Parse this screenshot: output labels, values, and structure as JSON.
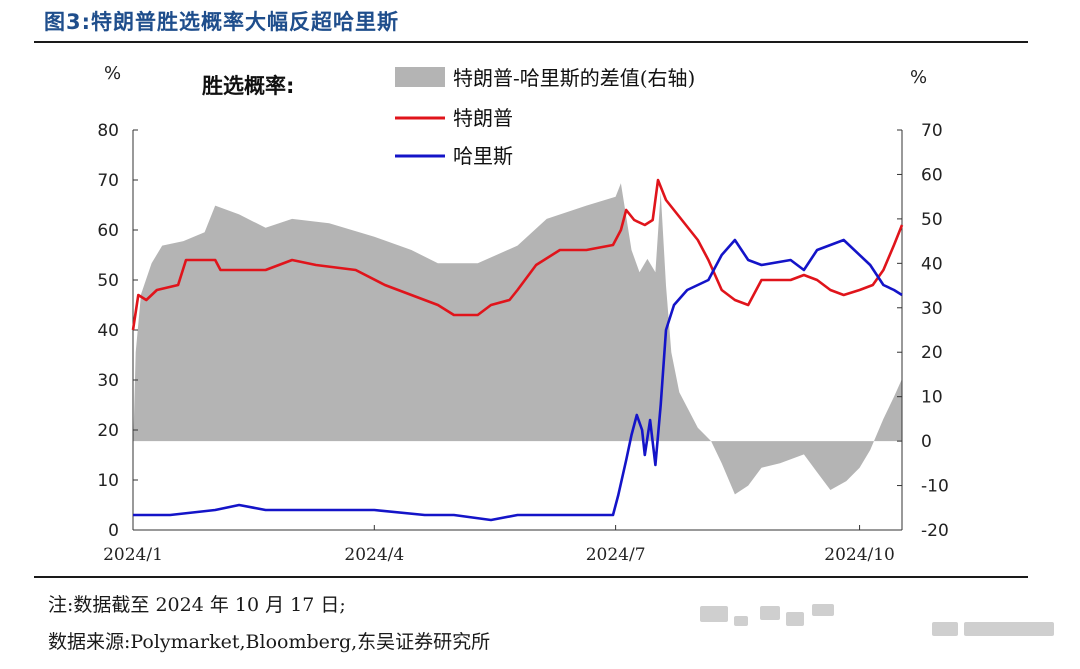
{
  "figure_label": "图3:特朗普胜选概率大幅反超哈里斯",
  "note": "注:数据截至 2024 年 10 月 17 日;",
  "source": "数据来源:Polymarket,Bloomberg,东吴证券研究所",
  "colors": {
    "trump": "#e0141b",
    "harris": "#1414c8",
    "diff_fill": "#b4b4b4",
    "title": "#1f4e8c"
  },
  "chart_data": {
    "type": "line",
    "panel_label": "胜选概率:",
    "left_unit": "%",
    "right_unit": "%",
    "xlim": [
      "2024-01-01",
      "2024-10-17"
    ],
    "x_ticks": [
      "2024/1",
      "2024/4",
      "2024/7",
      "2024/10"
    ],
    "x_tick_dates": [
      "2024-01-01",
      "2024-04-01",
      "2024-07-01",
      "2024-10-01"
    ],
    "y_left": {
      "min": 0,
      "max": 80,
      "ticks": [
        0,
        10,
        20,
        30,
        40,
        50,
        60,
        70,
        80
      ]
    },
    "y_right": {
      "min": -20,
      "max": 70,
      "ticks": [
        -20,
        -10,
        0,
        10,
        20,
        30,
        40,
        50,
        60,
        70
      ]
    },
    "series": [
      {
        "name": "特朗普-哈里斯的差值(右轴)",
        "kind": "area",
        "axis": "right",
        "points": [
          [
            "2024-01-01",
            -3
          ],
          [
            "2024-01-02",
            20
          ],
          [
            "2024-01-04",
            33
          ],
          [
            "2024-01-08",
            40
          ],
          [
            "2024-01-12",
            44
          ],
          [
            "2024-01-20",
            45
          ],
          [
            "2024-01-28",
            47
          ],
          [
            "2024-02-01",
            53
          ],
          [
            "2024-02-10",
            51
          ],
          [
            "2024-02-20",
            48
          ],
          [
            "2024-03-01",
            50
          ],
          [
            "2024-03-15",
            49
          ],
          [
            "2024-04-01",
            46
          ],
          [
            "2024-04-15",
            43
          ],
          [
            "2024-04-25",
            40
          ],
          [
            "2024-05-10",
            40
          ],
          [
            "2024-05-25",
            44
          ],
          [
            "2024-06-05",
            50
          ],
          [
            "2024-06-20",
            53
          ],
          [
            "2024-07-01",
            55
          ],
          [
            "2024-07-03",
            58
          ],
          [
            "2024-07-07",
            43
          ],
          [
            "2024-07-10",
            38
          ],
          [
            "2024-07-13",
            41
          ],
          [
            "2024-07-16",
            38
          ],
          [
            "2024-07-18",
            56
          ],
          [
            "2024-07-20",
            35
          ],
          [
            "2024-07-22",
            20
          ],
          [
            "2024-07-25",
            11
          ],
          [
            "2024-08-01",
            3
          ],
          [
            "2024-08-06",
            0
          ],
          [
            "2024-08-10",
            -5
          ],
          [
            "2024-08-15",
            -12
          ],
          [
            "2024-08-20",
            -10
          ],
          [
            "2024-08-25",
            -6
          ],
          [
            "2024-09-01",
            -5
          ],
          [
            "2024-09-10",
            -3
          ],
          [
            "2024-09-15",
            -7
          ],
          [
            "2024-09-20",
            -11
          ],
          [
            "2024-09-26",
            -9
          ],
          [
            "2024-10-01",
            -6
          ],
          [
            "2024-10-05",
            -2
          ],
          [
            "2024-10-10",
            5
          ],
          [
            "2024-10-14",
            10
          ],
          [
            "2024-10-17",
            14
          ]
        ]
      },
      {
        "name": "特朗普",
        "kind": "line",
        "axis": "left",
        "points": [
          [
            "2024-01-01",
            40
          ],
          [
            "2024-01-03",
            47
          ],
          [
            "2024-01-06",
            46
          ],
          [
            "2024-01-10",
            48
          ],
          [
            "2024-01-18",
            49
          ],
          [
            "2024-01-21",
            54
          ],
          [
            "2024-02-01",
            54
          ],
          [
            "2024-02-03",
            52
          ],
          [
            "2024-02-20",
            52
          ],
          [
            "2024-03-01",
            54
          ],
          [
            "2024-03-10",
            53
          ],
          [
            "2024-03-25",
            52
          ],
          [
            "2024-04-05",
            49
          ],
          [
            "2024-04-15",
            47
          ],
          [
            "2024-04-25",
            45
          ],
          [
            "2024-05-01",
            43
          ],
          [
            "2024-05-10",
            43
          ],
          [
            "2024-05-15",
            45
          ],
          [
            "2024-05-22",
            46
          ],
          [
            "2024-05-25",
            48
          ],
          [
            "2024-06-01",
            53
          ],
          [
            "2024-06-10",
            56
          ],
          [
            "2024-06-20",
            56
          ],
          [
            "2024-06-30",
            57
          ],
          [
            "2024-07-03",
            60
          ],
          [
            "2024-07-05",
            64
          ],
          [
            "2024-07-08",
            62
          ],
          [
            "2024-07-12",
            61
          ],
          [
            "2024-07-15",
            62
          ],
          [
            "2024-07-17",
            70
          ],
          [
            "2024-07-20",
            66
          ],
          [
            "2024-07-26",
            62
          ],
          [
            "2024-08-01",
            58
          ],
          [
            "2024-08-05",
            54
          ],
          [
            "2024-08-10",
            48
          ],
          [
            "2024-08-15",
            46
          ],
          [
            "2024-08-20",
            45
          ],
          [
            "2024-08-25",
            50
          ],
          [
            "2024-09-05",
            50
          ],
          [
            "2024-09-10",
            51
          ],
          [
            "2024-09-15",
            50
          ],
          [
            "2024-09-20",
            48
          ],
          [
            "2024-09-25",
            47
          ],
          [
            "2024-10-01",
            48
          ],
          [
            "2024-10-06",
            49
          ],
          [
            "2024-10-10",
            52
          ],
          [
            "2024-10-14",
            57
          ],
          [
            "2024-10-17",
            61
          ]
        ]
      },
      {
        "name": "哈里斯",
        "kind": "line",
        "axis": "left",
        "points": [
          [
            "2024-01-01",
            3
          ],
          [
            "2024-01-15",
            3
          ],
          [
            "2024-02-01",
            4
          ],
          [
            "2024-02-10",
            5
          ],
          [
            "2024-02-20",
            4
          ],
          [
            "2024-03-10",
            4
          ],
          [
            "2024-04-01",
            4
          ],
          [
            "2024-04-20",
            3
          ],
          [
            "2024-05-01",
            3
          ],
          [
            "2024-05-15",
            2
          ],
          [
            "2024-05-25",
            3
          ],
          [
            "2024-06-10",
            3
          ],
          [
            "2024-06-30",
            3
          ],
          [
            "2024-07-02",
            7
          ],
          [
            "2024-07-05",
            14
          ],
          [
            "2024-07-07",
            19
          ],
          [
            "2024-07-09",
            23
          ],
          [
            "2024-07-11",
            20
          ],
          [
            "2024-07-12",
            15
          ],
          [
            "2024-07-14",
            22
          ],
          [
            "2024-07-16",
            13
          ],
          [
            "2024-07-18",
            25
          ],
          [
            "2024-07-20",
            40
          ],
          [
            "2024-07-23",
            45
          ],
          [
            "2024-07-28",
            48
          ],
          [
            "2024-08-05",
            50
          ],
          [
            "2024-08-10",
            55
          ],
          [
            "2024-08-15",
            58
          ],
          [
            "2024-08-20",
            54
          ],
          [
            "2024-08-25",
            53
          ],
          [
            "2024-09-05",
            54
          ],
          [
            "2024-09-10",
            52
          ],
          [
            "2024-09-15",
            56
          ],
          [
            "2024-09-25",
            58
          ],
          [
            "2024-10-05",
            53
          ],
          [
            "2024-10-10",
            49
          ],
          [
            "2024-10-14",
            48
          ],
          [
            "2024-10-17",
            47
          ]
        ]
      }
    ]
  }
}
